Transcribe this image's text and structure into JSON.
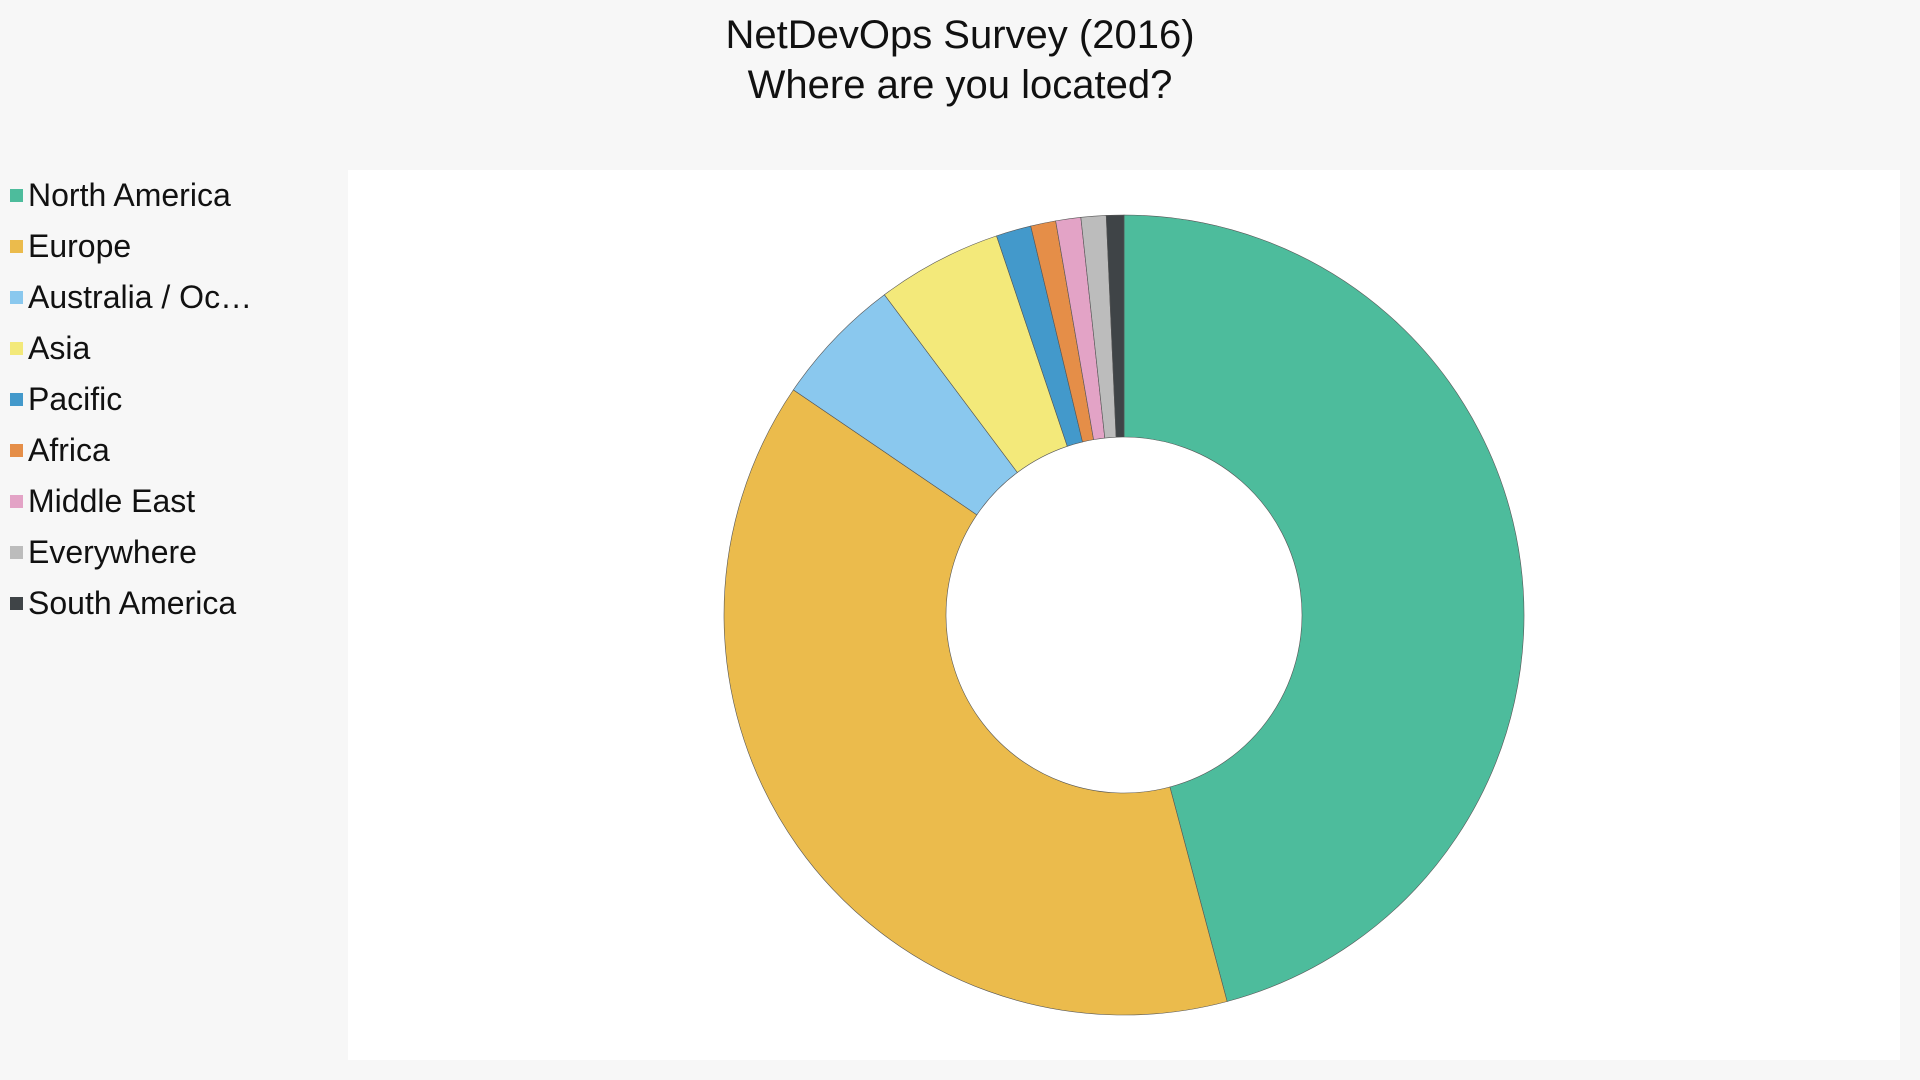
{
  "chart_data": {
    "type": "pie",
    "title": "NetDevOps Survey (2016)",
    "subtitle": "Where are you located?",
    "donut": true,
    "legend_position": "left",
    "slices": [
      {
        "label": "North America",
        "legend_label": "North America",
        "value": 45.3,
        "color": "#4dbc9c"
      },
      {
        "label": "Europe",
        "legend_label": "Europe",
        "value": 38.2,
        "color": "#ebbb4c"
      },
      {
        "label": "Australia / Oceania",
        "legend_label": "Australia / Oc…",
        "value": 5.2,
        "color": "#8ac8ee"
      },
      {
        "label": "Asia",
        "legend_label": "Asia",
        "value": 5.0,
        "color": "#f3e97a"
      },
      {
        "label": "Pacific",
        "legend_label": "Pacific",
        "value": 1.4,
        "color": "#4399cb"
      },
      {
        "label": "Africa",
        "legend_label": "Africa",
        "value": 1.0,
        "color": "#e58e48"
      },
      {
        "label": "Middle East",
        "legend_label": "Middle East",
        "value": 1.0,
        "color": "#e3a3c6"
      },
      {
        "label": "Everywhere",
        "legend_label": "Everywhere",
        "value": 1.0,
        "color": "#bcbcbc"
      },
      {
        "label": "South America",
        "legend_label": "South America",
        "value": 0.7,
        "color": "#3f4447"
      }
    ]
  }
}
